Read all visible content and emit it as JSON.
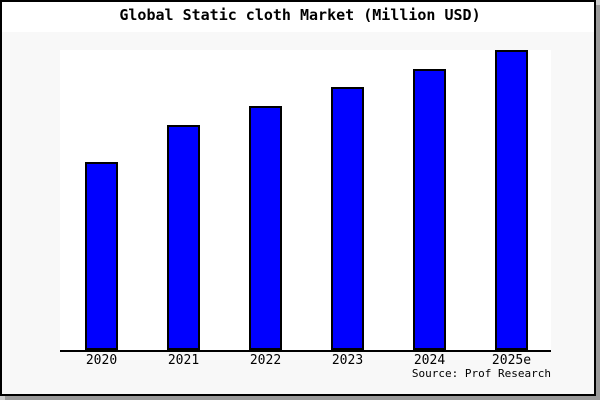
{
  "title": "Global Static cloth Market (Million USD)",
  "source": "Source: Prof Research",
  "colors": {
    "canvas_background": "#f8f8f8",
    "title_band": "#ffffff",
    "plot_background": "#ffffff",
    "frame_border": "#000000",
    "drop_shadow": "#9a9a9a",
    "bar_fill": "#0000ff",
    "bar_border": "#000000",
    "axis_line": "#000000",
    "text": "#000000"
  },
  "chart_data": {
    "type": "bar",
    "title": "Global Static cloth Market (Million USD)",
    "categories": [
      "2020",
      "2021",
      "2022",
      "2023",
      "2024",
      "2025e"
    ],
    "values": [
      188,
      225,
      244,
      263,
      281,
      300
    ],
    "xlabel": "",
    "ylabel": "",
    "ylim": [
      0,
      300
    ],
    "y_axis_ticks": [],
    "grid": false,
    "legend": false,
    "bar_color": "#0000ff"
  }
}
